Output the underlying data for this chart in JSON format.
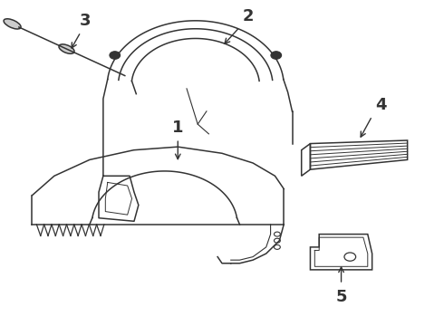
{
  "background_color": "#ffffff",
  "line_color": "#333333",
  "fig_width": 4.9,
  "fig_height": 3.6,
  "dpi": 100
}
